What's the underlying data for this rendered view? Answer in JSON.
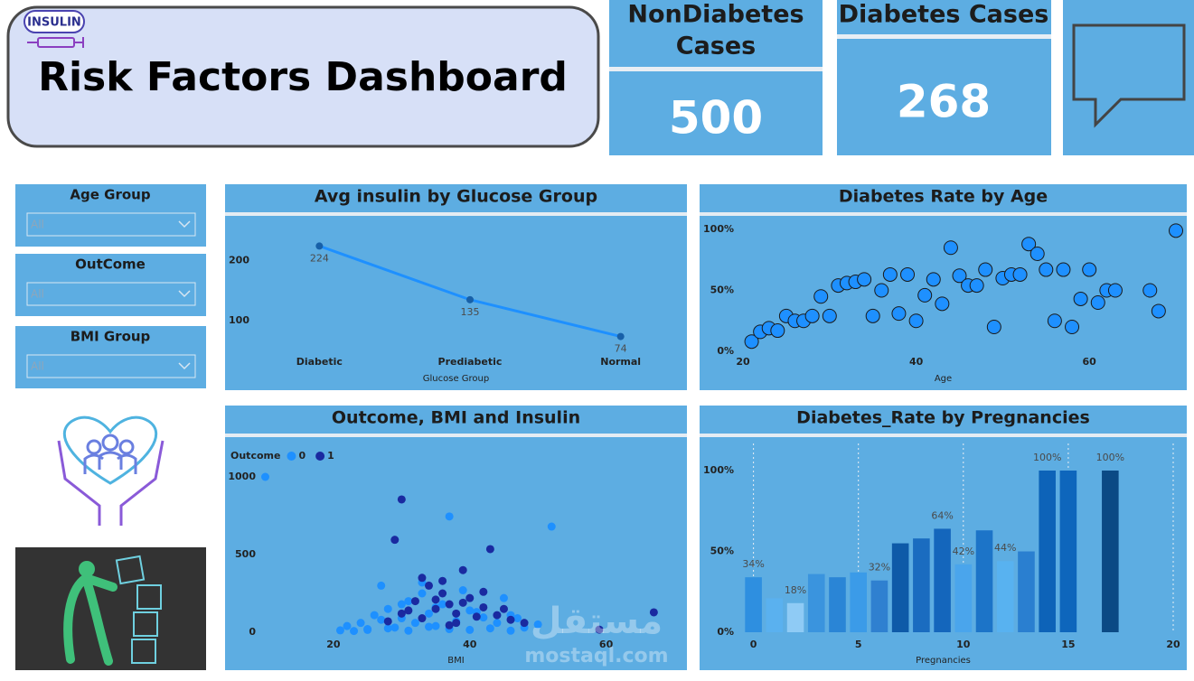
{
  "header": {
    "logo": "INSULIN",
    "title": "Risk Factors Dashboard"
  },
  "kpis": [
    {
      "title": [
        "NonDiabetes",
        "Cases"
      ],
      "value": 500
    },
    {
      "title": [
        "Diabetes Cases"
      ],
      "value": 268
    }
  ],
  "slicers": [
    {
      "title": "Age Group",
      "value": "All"
    },
    {
      "title": "OutCome",
      "value": "All"
    },
    {
      "title": "BMI Group",
      "value": "All"
    }
  ],
  "watermark": [
    "مستقل",
    "mostaql.com"
  ],
  "chart_data": [
    {
      "type": "line",
      "title": "Avg insulin by Glucose Group",
      "x_label": "Glucose Group",
      "categories": [
        "Diabetic",
        "Prediabetic",
        "Normal"
      ],
      "values": [
        224,
        135,
        74
      ],
      "color": "#1e90ff",
      "ylim": [
        30,
        265
      ],
      "yticks": [
        100,
        200
      ]
    },
    {
      "type": "scatter",
      "title": "Diabetes Rate by Age",
      "x_label": "Age",
      "color": "#1e90ff",
      "x": [
        21,
        22,
        23,
        24,
        25,
        26,
        27,
        28,
        29,
        30,
        31,
        32,
        33,
        34,
        35,
        36,
        37,
        38,
        39,
        40,
        41,
        42,
        43,
        44,
        45,
        46,
        47,
        48,
        49,
        50,
        51,
        52,
        53,
        54,
        55,
        56,
        57,
        58,
        59,
        60,
        61,
        62,
        63,
        67,
        68,
        70
      ],
      "values": [
        8,
        16,
        19,
        17,
        29,
        25,
        25,
        29,
        45,
        29,
        54,
        56,
        57,
        59,
        29,
        50,
        63,
        31,
        63,
        25,
        46,
        59,
        39,
        85,
        62,
        54,
        54,
        67,
        20,
        60,
        63,
        63,
        88,
        80,
        67,
        25,
        67,
        20,
        43,
        67,
        40,
        50,
        50,
        50,
        33,
        99
      ],
      "xlim": [
        20,
        70
      ],
      "xticks": [
        20,
        40,
        60
      ],
      "ylim": [
        0,
        100
      ],
      "yticks": [
        {
          "value": 0,
          "label": "0%"
        },
        {
          "value": 50,
          "label": "50%"
        },
        {
          "value": 100,
          "label": "100%"
        }
      ]
    },
    {
      "type": "scatter",
      "title": "Outcome, BMI and Insulin",
      "x_label": "BMI",
      "legend_title": "Outcome",
      "series": [
        {
          "name": "0",
          "color": "#1e90ff",
          "x": [
            10,
            37,
            52,
            22,
            24,
            25,
            26,
            27,
            28,
            29,
            30,
            31,
            32,
            33,
            34,
            35,
            36,
            38,
            40,
            42,
            44,
            46,
            48,
            50,
            25,
            28,
            31,
            34,
            37,
            40,
            43,
            46,
            21,
            23,
            27,
            33,
            39,
            45,
            30,
            35,
            41,
            47
          ],
          "values": [
            1000,
            745,
            680,
            40,
            60,
            20,
            110,
            80,
            150,
            30,
            90,
            200,
            60,
            250,
            120,
            40,
            180,
            70,
            140,
            95,
            60,
            110,
            30,
            50,
            15,
            25,
            10,
            35,
            20,
            15,
            25,
            10,
            12,
            8,
            300,
            320,
            270,
            220,
            180,
            160,
            130,
            90
          ]
        },
        {
          "name": "1",
          "color": "#1a2aa0",
          "x": [
            30,
            29,
            43,
            67,
            59,
            32,
            34,
            35,
            36,
            37,
            38,
            39,
            40,
            41,
            42,
            33,
            31,
            36,
            38,
            44,
            46,
            28,
            35,
            39,
            42,
            33,
            37,
            30,
            45,
            48
          ],
          "values": [
            855,
            595,
            535,
            128,
            17,
            200,
            300,
            150,
            250,
            180,
            120,
            400,
            220,
            100,
            160,
            90,
            140,
            330,
            60,
            110,
            80,
            70,
            210,
            190,
            260,
            350,
            45,
            120,
            150,
            60
          ]
        }
      ],
      "xlim": [
        10,
        70
      ],
      "xticks": [
        20,
        40,
        60
      ],
      "ylim": [
        0,
        1000
      ],
      "yticks": [
        0,
        500,
        1000
      ]
    },
    {
      "type": "bar",
      "title": "Diabetes_Rate by Pregnancies",
      "x_label": "Pregnancies",
      "x": [
        0,
        1,
        2,
        3,
        4,
        5,
        6,
        7,
        8,
        9,
        10,
        11,
        12,
        13,
        14,
        15,
        17
      ],
      "values": [
        34,
        21,
        18,
        36,
        34,
        37,
        32,
        55,
        58,
        64,
        42,
        63,
        44,
        50,
        100,
        100,
        100
      ],
      "value_labels": [
        "34%",
        null,
        "18%",
        null,
        null,
        null,
        "32%",
        null,
        null,
        "64%",
        "42%",
        null,
        "44%",
        null,
        "100%",
        null,
        "100%"
      ],
      "colors": [
        "#2e8fe0",
        "#5ab1ef",
        "#8fcbf5",
        "#3a94de",
        "#2a85d6",
        "#3b9be8",
        "#2f80d0",
        "#0e5aa8",
        "#1a6cc0",
        "#1466bc",
        "#4aa5ec",
        "#1c74c8",
        "#58b2f0",
        "#2a7fd0",
        "#0d63b8",
        "#0e66bc",
        "#0b4a85"
      ],
      "xlim": [
        -0.5,
        20
      ],
      "xticks": [
        0,
        5,
        10,
        15,
        20
      ],
      "ylim": [
        0,
        100
      ],
      "yticks": [
        {
          "value": 0,
          "label": "0%"
        },
        {
          "value": 50,
          "label": "50%"
        },
        {
          "value": 100,
          "label": "100%"
        }
      ],
      "grid": "x"
    }
  ]
}
